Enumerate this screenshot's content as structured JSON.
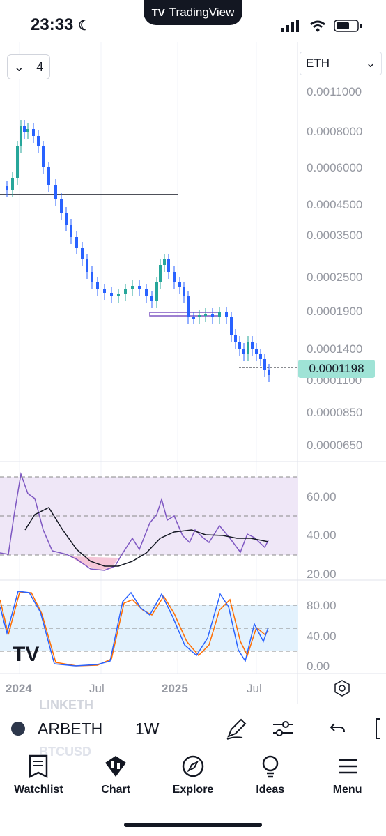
{
  "status_bar": {
    "time": "23:33"
  },
  "app_pill": {
    "label": "TradingView"
  },
  "legend": {
    "indicator_count": "4"
  },
  "quote_currency": {
    "value": "ETH"
  },
  "price_axis": {
    "labels": [
      "0.0011000",
      "0.0008000",
      "0.0006000",
      "0.0004500",
      "0.0003500",
      "0.0002500",
      "0.0001900",
      "0.0001400",
      "0.0001100",
      "0.0000850",
      "0.0000650"
    ],
    "last_price": "0.0001198",
    "last_price_color": "#9fe3d6"
  },
  "rsi_axis": {
    "labels": [
      "60.00",
      "40.00",
      "20.00"
    ]
  },
  "stoch_axis": {
    "labels": [
      "80.00",
      "40.00",
      "0.00"
    ]
  },
  "time_axis": {
    "labels": [
      "2024",
      "Jul",
      "2025",
      "Jul"
    ]
  },
  "watermark": {
    "logo": "tradingview-logo"
  },
  "symbol_list_hint": {
    "above": "LINKETH",
    "below": "BTCUSD"
  },
  "toolbar": {
    "symbol": "ARBETH",
    "interval": "1W"
  },
  "tabs": [
    {
      "label": "Watchlist",
      "icon": "watchlist-icon"
    },
    {
      "label": "Chart",
      "icon": "chart-icon"
    },
    {
      "label": "Explore",
      "icon": "compass-icon"
    },
    {
      "label": "Ideas",
      "icon": "bulb-icon"
    },
    {
      "label": "Menu",
      "icon": "menu-icon"
    }
  ],
  "colors": {
    "candle_up": "#26a69a",
    "candle_down": "#2962ff",
    "rsi_line": "#7e57c2",
    "stoch_k": "#2962ff",
    "stoch_d": "#ff6d00"
  }
}
